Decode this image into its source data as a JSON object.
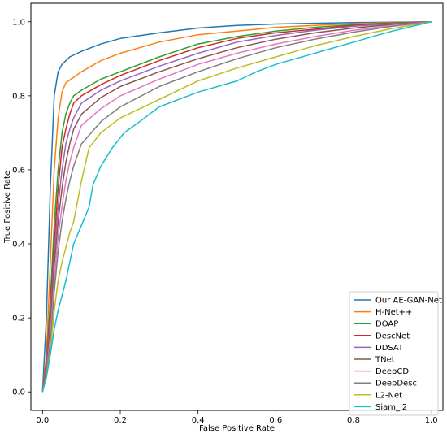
{
  "chart_data": {
    "type": "line",
    "title": "",
    "xlabel": "False Positive Rate",
    "ylabel": "True Positive Rate",
    "xlim": [
      -0.03,
      1.03
    ],
    "ylim": [
      -0.05,
      1.05
    ],
    "xticks": [
      0.0,
      0.2,
      0.4,
      0.6,
      0.8,
      1.0
    ],
    "yticks": [
      0.0,
      0.2,
      0.4,
      0.6,
      0.8,
      1.0
    ],
    "xtick_labels": [
      "0.0",
      "0.2",
      "0.4",
      "0.6",
      "0.8",
      "1.0"
    ],
    "ytick_labels": [
      "0.0",
      "0.2",
      "0.4",
      "0.6",
      "0.8",
      "1.0"
    ],
    "grid": false,
    "legend_position": "bottom-right",
    "series": [
      {
        "name": "Our AE-GAN-Net",
        "color": "#1f77b4",
        "x": [
          0,
          0.01,
          0.02,
          0.03,
          0.04,
          0.05,
          0.07,
          0.1,
          0.15,
          0.2,
          0.3,
          0.4,
          0.5,
          0.6,
          0.7,
          0.8,
          0.9,
          1.0
        ],
        "y": [
          0,
          0.2,
          0.55,
          0.8,
          0.865,
          0.885,
          0.905,
          0.92,
          0.94,
          0.955,
          0.97,
          0.983,
          0.99,
          0.994,
          0.996,
          0.998,
          0.999,
          1.0
        ]
      },
      {
        "name": "H-Net++",
        "color": "#ff7f0e",
        "x": [
          0,
          0.01,
          0.02,
          0.03,
          0.04,
          0.05,
          0.06,
          0.08,
          0.1,
          0.15,
          0.2,
          0.3,
          0.4,
          0.5,
          0.6,
          0.7,
          0.8,
          0.9,
          1.0
        ],
        "y": [
          0,
          0.1,
          0.35,
          0.6,
          0.74,
          0.81,
          0.835,
          0.85,
          0.865,
          0.895,
          0.915,
          0.945,
          0.965,
          0.975,
          0.985,
          0.99,
          0.995,
          0.998,
          1.0
        ]
      },
      {
        "name": "DOAP",
        "color": "#2ca02c",
        "x": [
          0,
          0.01,
          0.02,
          0.03,
          0.04,
          0.05,
          0.06,
          0.07,
          0.08,
          0.1,
          0.15,
          0.2,
          0.3,
          0.4,
          0.5,
          0.6,
          0.7,
          0.8,
          0.9,
          1.0
        ],
        "y": [
          0,
          0.08,
          0.25,
          0.45,
          0.6,
          0.7,
          0.75,
          0.78,
          0.8,
          0.815,
          0.845,
          0.865,
          0.905,
          0.94,
          0.96,
          0.975,
          0.985,
          0.992,
          0.997,
          1.0
        ]
      },
      {
        "name": "DescNet",
        "color": "#d62728",
        "x": [
          0,
          0.01,
          0.02,
          0.03,
          0.04,
          0.05,
          0.06,
          0.07,
          0.08,
          0.1,
          0.15,
          0.2,
          0.3,
          0.4,
          0.5,
          0.6,
          0.7,
          0.8,
          0.9,
          1.0
        ],
        "y": [
          0,
          0.08,
          0.22,
          0.4,
          0.55,
          0.66,
          0.71,
          0.75,
          0.78,
          0.8,
          0.83,
          0.855,
          0.895,
          0.93,
          0.955,
          0.97,
          0.98,
          0.99,
          0.996,
          1.0
        ]
      },
      {
        "name": "DDSAT",
        "color": "#9467bd",
        "x": [
          0,
          0.01,
          0.02,
          0.03,
          0.04,
          0.05,
          0.06,
          0.07,
          0.08,
          0.1,
          0.15,
          0.2,
          0.3,
          0.4,
          0.5,
          0.6,
          0.7,
          0.8,
          0.9,
          1.0
        ],
        "y": [
          0,
          0.07,
          0.2,
          0.37,
          0.5,
          0.6,
          0.67,
          0.71,
          0.74,
          0.78,
          0.815,
          0.84,
          0.88,
          0.915,
          0.945,
          0.963,
          0.977,
          0.988,
          0.995,
          1.0
        ]
      },
      {
        "name": "TNet",
        "color": "#8c564b",
        "x": [
          0,
          0.01,
          0.02,
          0.03,
          0.04,
          0.05,
          0.06,
          0.07,
          0.08,
          0.1,
          0.15,
          0.2,
          0.3,
          0.4,
          0.5,
          0.6,
          0.7,
          0.8,
          0.9,
          1.0
        ],
        "y": [
          0,
          0.06,
          0.18,
          0.34,
          0.46,
          0.55,
          0.62,
          0.67,
          0.71,
          0.75,
          0.795,
          0.825,
          0.865,
          0.9,
          0.93,
          0.953,
          0.97,
          0.983,
          0.993,
          1.0
        ]
      },
      {
        "name": "DeepCD",
        "color": "#e377c2",
        "x": [
          0,
          0.01,
          0.02,
          0.03,
          0.04,
          0.05,
          0.06,
          0.07,
          0.08,
          0.1,
          0.15,
          0.2,
          0.3,
          0.4,
          0.5,
          0.6,
          0.7,
          0.8,
          0.9,
          1.0
        ],
        "y": [
          0,
          0.05,
          0.15,
          0.3,
          0.42,
          0.5,
          0.57,
          0.62,
          0.66,
          0.72,
          0.765,
          0.8,
          0.845,
          0.885,
          0.915,
          0.94,
          0.96,
          0.977,
          0.99,
          1.0
        ]
      },
      {
        "name": "DeepDesc",
        "color": "#7f7f7f",
        "x": [
          0,
          0.01,
          0.02,
          0.03,
          0.04,
          0.05,
          0.06,
          0.07,
          0.08,
          0.1,
          0.15,
          0.2,
          0.3,
          0.4,
          0.5,
          0.6,
          0.7,
          0.8,
          0.9,
          1.0
        ],
        "y": [
          0,
          0.05,
          0.13,
          0.27,
          0.38,
          0.46,
          0.52,
          0.57,
          0.61,
          0.67,
          0.73,
          0.77,
          0.825,
          0.865,
          0.9,
          0.93,
          0.953,
          0.972,
          0.988,
          1.0
        ]
      },
      {
        "name": "L2-Net",
        "color": "#bcbd22",
        "x": [
          0,
          0.01,
          0.02,
          0.03,
          0.04,
          0.05,
          0.06,
          0.07,
          0.08,
          0.1,
          0.12,
          0.15,
          0.2,
          0.25,
          0.3,
          0.4,
          0.5,
          0.6,
          0.7,
          0.8,
          0.9,
          1.0
        ],
        "y": [
          0,
          0.04,
          0.11,
          0.22,
          0.3,
          0.35,
          0.39,
          0.43,
          0.46,
          0.57,
          0.66,
          0.7,
          0.74,
          0.765,
          0.79,
          0.84,
          0.875,
          0.905,
          0.935,
          0.96,
          0.982,
          1.0
        ]
      },
      {
        "name": "Siam_l2",
        "color": "#17becf",
        "x": [
          0,
          0.01,
          0.02,
          0.03,
          0.04,
          0.05,
          0.06,
          0.08,
          0.1,
          0.12,
          0.13,
          0.15,
          0.18,
          0.21,
          0.25,
          0.3,
          0.4,
          0.5,
          0.55,
          0.6,
          0.7,
          0.8,
          0.9,
          1.0
        ],
        "y": [
          0,
          0.04,
          0.1,
          0.17,
          0.22,
          0.26,
          0.3,
          0.4,
          0.45,
          0.5,
          0.56,
          0.61,
          0.66,
          0.7,
          0.73,
          0.77,
          0.81,
          0.84,
          0.865,
          0.885,
          0.915,
          0.945,
          0.975,
          1.0
        ]
      }
    ]
  }
}
